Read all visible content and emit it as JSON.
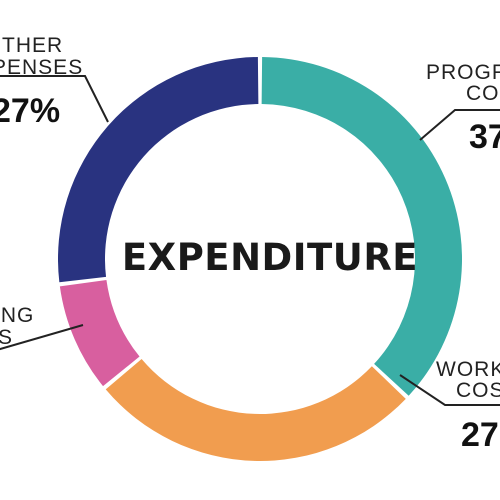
{
  "chart_data": {
    "type": "pie",
    "title": "EXPENDITURE",
    "categories": [
      "PROGRAMME COSTS",
      "WORKING COSTS",
      "FUNDRAISING COSTS",
      "OTHER EXPENSES"
    ],
    "visible_labels": [
      [
        "PROGR",
        "COS"
      ],
      [
        "WORK",
        "COS"
      ],
      [
        "ING",
        "S"
      ],
      [
        "THER",
        "PENSES"
      ]
    ],
    "visible_values": [
      "37",
      "27",
      "",
      "27%"
    ],
    "values": [
      37,
      27,
      9,
      27
    ],
    "colors": [
      "#3aaea6",
      "#f19d4f",
      "#d85f9f",
      "#293380"
    ],
    "legend": "none"
  }
}
